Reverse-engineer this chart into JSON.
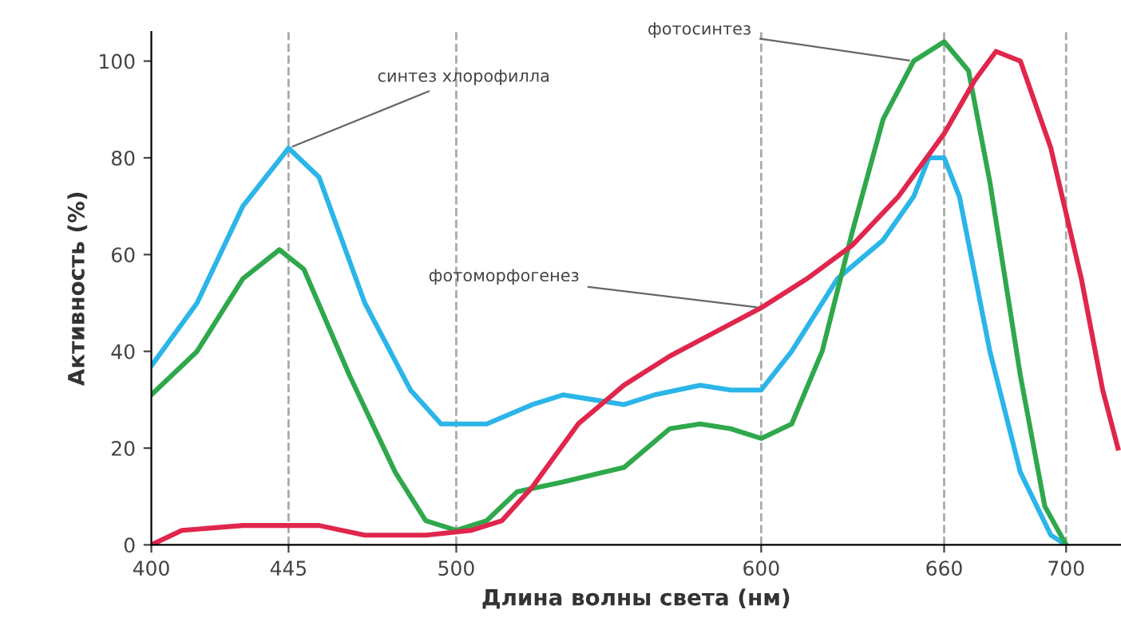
{
  "chart_data": {
    "type": "line",
    "xlabel": "Длина волны света (нм)",
    "ylabel": "Активность (%)",
    "xlim": [
      400,
      718
    ],
    "ylim": [
      0,
      106
    ],
    "xticks": [
      400,
      445,
      500,
      600,
      660,
      700
    ],
    "yticks": [
      0,
      20,
      40,
      60,
      80,
      100
    ],
    "grid": false,
    "legend": false,
    "marker": "none",
    "line_style": "solid",
    "series": [
      {
        "color": "#2bb5e8",
        "x": [
          400,
          415,
          430,
          445,
          455,
          470,
          485,
          495,
          510,
          525,
          535,
          545,
          555,
          565,
          580,
          590,
          600,
          610,
          625,
          640,
          650,
          655,
          660,
          665,
          675,
          685,
          695,
          700
        ],
        "values": [
          37,
          50,
          70,
          82,
          76,
          50,
          32,
          25,
          25,
          29,
          31,
          30,
          29,
          31,
          33,
          32,
          32,
          40,
          55,
          63,
          72,
          80,
          80,
          72,
          40,
          15,
          2,
          0
        ]
      },
      {
        "color": "#2fa84c",
        "x": [
          400,
          415,
          430,
          442,
          450,
          465,
          480,
          490,
          500,
          510,
          520,
          535,
          555,
          570,
          580,
          590,
          600,
          610,
          620,
          630,
          640,
          650,
          660,
          668,
          675,
          685,
          693,
          700
        ],
        "values": [
          31,
          40,
          55,
          61,
          57,
          35,
          15,
          5,
          3,
          5,
          11,
          13,
          16,
          24,
          25,
          24,
          22,
          25,
          40,
          65,
          88,
          100,
          104,
          98,
          75,
          35,
          8,
          0
        ]
      },
      {
        "color": "#e0264c",
        "x": [
          400,
          410,
          430,
          455,
          470,
          490,
          505,
          515,
          525,
          540,
          555,
          570,
          585,
          600,
          615,
          630,
          645,
          660,
          670,
          677,
          685,
          695,
          705,
          712,
          717
        ],
        "values": [
          0,
          3,
          4,
          4,
          2,
          2,
          3,
          5,
          12,
          25,
          33,
          39,
          44,
          49,
          55,
          62,
          72,
          85,
          96,
          102,
          100,
          82,
          55,
          32,
          20
        ]
      }
    ],
    "ref_lines": [
      {
        "axis": "x",
        "value": 445,
        "color": "#aaaaaa",
        "line_style": "dashed"
      },
      {
        "axis": "x",
        "value": 500,
        "color": "#aaaaaa",
        "line_style": "dashed"
      },
      {
        "axis": "x",
        "value": 600,
        "color": "#aaaaaa",
        "line_style": "dashed"
      },
      {
        "axis": "x",
        "value": 660,
        "color": "#aaaaaa",
        "line_style": "dashed"
      },
      {
        "axis": "x",
        "value": 700,
        "color": "#aaaaaa",
        "line_style": "dashed"
      }
    ],
    "annotations": [
      {
        "text": "синтез хлорофилла",
        "x": 445,
        "y": 82
      },
      {
        "text": "фотоморфогенез",
        "x": 600,
        "y": 49
      },
      {
        "text": "фотосинтез",
        "x": 650,
        "y": 100
      }
    ]
  }
}
